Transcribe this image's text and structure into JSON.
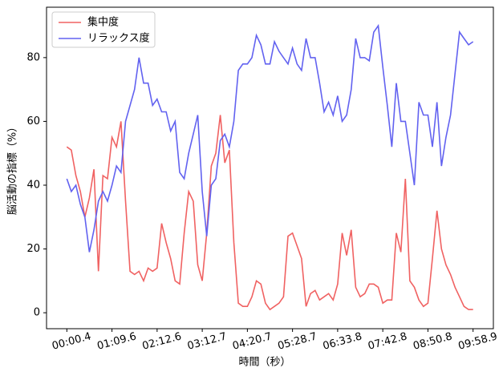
{
  "chart_data": {
    "type": "line",
    "xlabel": "時間（秒）",
    "ylabel": "脳活動の指標（%）",
    "categories": [
      "00:00.4",
      null,
      null,
      null,
      null,
      null,
      null,
      null,
      null,
      null,
      "01:09.6",
      null,
      null,
      null,
      null,
      null,
      null,
      null,
      null,
      null,
      "02:12.6",
      null,
      null,
      null,
      null,
      null,
      null,
      null,
      null,
      null,
      "03:12.7",
      null,
      null,
      null,
      null,
      null,
      null,
      null,
      null,
      null,
      "04:20.7",
      null,
      null,
      null,
      null,
      null,
      null,
      null,
      null,
      null,
      "05:28.7",
      null,
      null,
      null,
      null,
      null,
      null,
      null,
      null,
      null,
      "06:33.8",
      null,
      null,
      null,
      null,
      null,
      null,
      null,
      null,
      null,
      "07:42.8",
      null,
      null,
      null,
      null,
      null,
      null,
      null,
      null,
      null,
      "08:50.8",
      null,
      null,
      null,
      null,
      null,
      null,
      null,
      null,
      null,
      "09:58.9"
    ],
    "series": [
      {
        "name": "集中度",
        "color": "#f06262",
        "values": [
          52,
          51,
          43,
          38,
          30,
          36,
          45,
          13,
          43,
          42,
          55,
          52,
          60,
          35,
          13,
          12,
          13,
          10,
          14,
          13,
          14,
          28,
          22,
          17,
          10,
          9,
          25,
          38,
          35,
          15,
          10,
          25,
          46,
          50,
          62,
          47,
          51,
          22,
          3,
          2,
          2,
          5,
          10,
          9,
          3,
          1,
          2,
          3,
          5,
          24,
          25,
          21,
          17,
          2,
          6,
          7,
          4,
          5,
          6,
          4,
          9,
          25,
          18,
          26,
          8,
          5,
          6,
          9,
          9,
          8,
          3,
          4,
          4,
          25,
          19,
          42,
          10,
          8,
          4,
          2,
          3,
          17,
          32,
          20,
          15,
          12,
          8,
          5,
          2,
          1,
          1
        ]
      },
      {
        "name": "リラックス度",
        "color": "#6262f0",
        "values": [
          42,
          38,
          40,
          34,
          30,
          19,
          26,
          35,
          38,
          35,
          40,
          46,
          44,
          60,
          65,
          70,
          80,
          72,
          72,
          65,
          67,
          63,
          63,
          57,
          60,
          44,
          42,
          50,
          56,
          62,
          38,
          24,
          40,
          42,
          54,
          56,
          52,
          60,
          76,
          78,
          78,
          80,
          87,
          84,
          78,
          78,
          85,
          82,
          80,
          78,
          83,
          78,
          76,
          86,
          80,
          80,
          72,
          63,
          66,
          62,
          68,
          60,
          62,
          70,
          86,
          80,
          80,
          79,
          88,
          90,
          77,
          65,
          52,
          72,
          60,
          60,
          50,
          40,
          66,
          62,
          62,
          52,
          66,
          46,
          55,
          62,
          75,
          88,
          86,
          84,
          85
        ]
      }
    ],
    "ylim": [
      -5,
      95.8
    ],
    "yticks": [
      0,
      20,
      40,
      60,
      80
    ],
    "legend": "upper left"
  }
}
